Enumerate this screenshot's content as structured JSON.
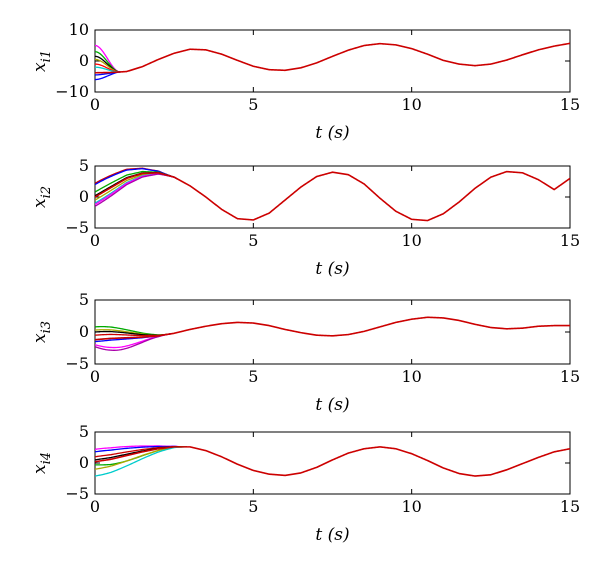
{
  "chart_data": [
    {
      "type": "line",
      "ylabel": "x_{i1}",
      "xlabel": "t (s)",
      "xlim": [
        0,
        15
      ],
      "ylim": [
        -10,
        10
      ],
      "xticks": [
        0,
        5,
        10,
        15
      ],
      "yticks": [
        -10,
        0,
        10
      ],
      "reference": {
        "name": "consensus trajectory",
        "x": [
          0,
          0.5,
          1,
          1.5,
          2,
          2.5,
          3,
          3.5,
          4,
          4.5,
          5,
          5.5,
          6,
          6.5,
          7,
          7.5,
          8,
          8.5,
          9,
          9.5,
          10,
          10.5,
          11,
          11.5,
          12,
          12.5,
          13,
          13.5,
          14,
          14.5,
          15
        ],
        "y": [
          -3.8,
          -3.7,
          -3.4,
          -1.8,
          0.5,
          2.5,
          3.8,
          3.6,
          2.2,
          0.2,
          -1.7,
          -2.8,
          -3.0,
          -2.2,
          -0.6,
          1.5,
          3.5,
          5.0,
          5.6,
          5.2,
          4.0,
          2.2,
          0.2,
          -1.0,
          -1.5,
          -1.0,
          0.3,
          2.0,
          3.6,
          4.8,
          5.7
        ]
      },
      "transients": [
        {
          "start": 5.0,
          "settle": 0.8,
          "color": "#ff00ff"
        },
        {
          "start": 3.0,
          "settle": 0.8,
          "color": "#00aa00"
        },
        {
          "start": 1.5,
          "settle": 0.8,
          "color": "#000000"
        },
        {
          "start": 0.5,
          "settle": 0.8,
          "color": "#aaaa00"
        },
        {
          "start": -1.0,
          "settle": 0.8,
          "color": "#ff0000"
        },
        {
          "start": -2.0,
          "settle": 0.8,
          "color": "#00cccc"
        },
        {
          "start": -4.5,
          "settle": 0.8,
          "color": "#0000ff"
        },
        {
          "start": -6.0,
          "settle": 0.8,
          "color": "#0000ff"
        }
      ],
      "final_color": "#cc0000"
    },
    {
      "type": "line",
      "ylabel": "x_{i2}",
      "xlabel": "t (s)",
      "xlim": [
        0,
        15
      ],
      "ylim": [
        -5,
        5
      ],
      "xticks": [
        0,
        5,
        10,
        15
      ],
      "yticks": [
        -5,
        0,
        5
      ],
      "reference": {
        "name": "consensus trajectory",
        "x": [
          0,
          0.5,
          1,
          1.5,
          2,
          2.5,
          3,
          3.5,
          4,
          4.5,
          5,
          5.5,
          6,
          6.5,
          7,
          7.5,
          8,
          8.5,
          9,
          9.5,
          10,
          10.5,
          11,
          11.5,
          12,
          12.5,
          13,
          13.5,
          14,
          14.5,
          15
        ],
        "y": [
          0.0,
          1.5,
          3.0,
          3.8,
          3.9,
          3.2,
          1.8,
          0.0,
          -2.0,
          -3.5,
          -3.7,
          -2.6,
          -0.5,
          1.6,
          3.3,
          4.0,
          3.6,
          2.1,
          -0.2,
          -2.3,
          -3.6,
          -3.8,
          -2.7,
          -0.8,
          1.4,
          3.2,
          4.1,
          3.9,
          2.8,
          1.2,
          3.0
        ]
      },
      "transients": [
        {
          "start": 2.2,
          "settle": 2.6,
          "color": "#cc0000"
        },
        {
          "start": 2.0,
          "settle": 2.6,
          "color": "#0000ff"
        },
        {
          "start": 0.8,
          "settle": 2.6,
          "color": "#00aa00"
        },
        {
          "start": 0.2,
          "settle": 2.6,
          "color": "#000000"
        },
        {
          "start": -0.5,
          "settle": 2.6,
          "color": "#aaaa00"
        },
        {
          "start": -1.0,
          "settle": 2.6,
          "color": "#00cccc"
        },
        {
          "start": -1.2,
          "settle": 2.6,
          "color": "#ff00ff"
        },
        {
          "start": -1.5,
          "settle": 2.6,
          "color": "#aa00aa"
        }
      ],
      "final_color": "#cc0000"
    },
    {
      "type": "line",
      "ylabel": "x_{i3}",
      "xlabel": "t (s)",
      "xlim": [
        0,
        15
      ],
      "ylim": [
        -5,
        5
      ],
      "xticks": [
        0,
        5,
        10,
        15
      ],
      "yticks": [
        -5,
        0,
        5
      ],
      "reference": {
        "name": "consensus trajectory",
        "x": [
          0,
          0.5,
          1,
          1.5,
          2,
          2.5,
          3,
          3.5,
          4,
          4.5,
          5,
          5.5,
          6,
          6.5,
          7,
          7.5,
          8,
          8.5,
          9,
          9.5,
          10,
          10.5,
          11,
          11.5,
          12,
          12.5,
          13,
          13.5,
          14,
          14.5,
          15
        ],
        "y": [
          -1.2,
          -1.0,
          -0.9,
          -0.8,
          -0.6,
          -0.2,
          0.4,
          0.9,
          1.3,
          1.5,
          1.4,
          1.0,
          0.4,
          -0.1,
          -0.5,
          -0.6,
          -0.4,
          0.1,
          0.8,
          1.5,
          2.0,
          2.3,
          2.2,
          1.8,
          1.2,
          0.7,
          0.5,
          0.6,
          0.9,
          1.0,
          1.0
        ]
      },
      "transients": [
        {
          "start": 0.8,
          "settle": 2.4,
          "color": "#00aa00"
        },
        {
          "start": 0.3,
          "settle": 2.4,
          "color": "#aaaa00"
        },
        {
          "start": 0.0,
          "settle": 2.4,
          "color": "#000000"
        },
        {
          "start": -0.5,
          "settle": 2.4,
          "color": "#cc0000"
        },
        {
          "start": -1.2,
          "settle": 2.4,
          "color": "#00cccc"
        },
        {
          "start": -1.5,
          "settle": 2.4,
          "color": "#0000ff"
        },
        {
          "start": -2.0,
          "settle": 2.4,
          "color": "#ff00ff",
          "dip": -1.3
        },
        {
          "start": -2.3,
          "settle": 2.4,
          "color": "#aa00aa",
          "dip": -1.6
        }
      ],
      "final_color": "#cc0000"
    },
    {
      "type": "line",
      "ylabel": "x_{i4}",
      "xlabel": "t (s)",
      "xlim": [
        0,
        15
      ],
      "ylim": [
        -5,
        5
      ],
      "xticks": [
        0,
        5,
        10,
        15
      ],
      "yticks": [
        -5,
        0,
        5
      ],
      "reference": {
        "name": "consensus trajectory",
        "x": [
          0,
          0.5,
          1,
          1.5,
          2,
          2.5,
          3,
          3.5,
          4,
          4.5,
          5,
          5.5,
          6,
          6.5,
          7,
          7.5,
          8,
          8.5,
          9,
          9.5,
          10,
          10.5,
          11,
          11.5,
          12,
          12.5,
          13,
          13.5,
          14,
          14.5,
          15
        ],
        "y": [
          0.2,
          0.6,
          1.2,
          1.8,
          2.3,
          2.6,
          2.6,
          2.0,
          1.0,
          -0.2,
          -1.2,
          -1.8,
          -2.0,
          -1.6,
          -0.7,
          0.5,
          1.6,
          2.3,
          2.6,
          2.3,
          1.5,
          0.4,
          -0.8,
          -1.7,
          -2.1,
          -1.9,
          -1.1,
          -0.1,
          0.9,
          1.8,
          2.3
        ]
      },
      "transients": [
        {
          "start": 2.2,
          "settle": 2.9,
          "color": "#ff00ff"
        },
        {
          "start": 1.8,
          "settle": 2.9,
          "color": "#0000ff"
        },
        {
          "start": 1.0,
          "settle": 2.9,
          "color": "#cc0000"
        },
        {
          "start": 0.5,
          "settle": 2.9,
          "color": "#000000"
        },
        {
          "start": -0.3,
          "settle": 2.9,
          "color": "#00aa00",
          "dip": -0.8
        },
        {
          "start": -1.0,
          "settle": 2.9,
          "color": "#aaaa00"
        },
        {
          "start": -2.1,
          "settle": 2.9,
          "color": "#00cccc"
        }
      ],
      "final_color": "#cc0000"
    }
  ]
}
